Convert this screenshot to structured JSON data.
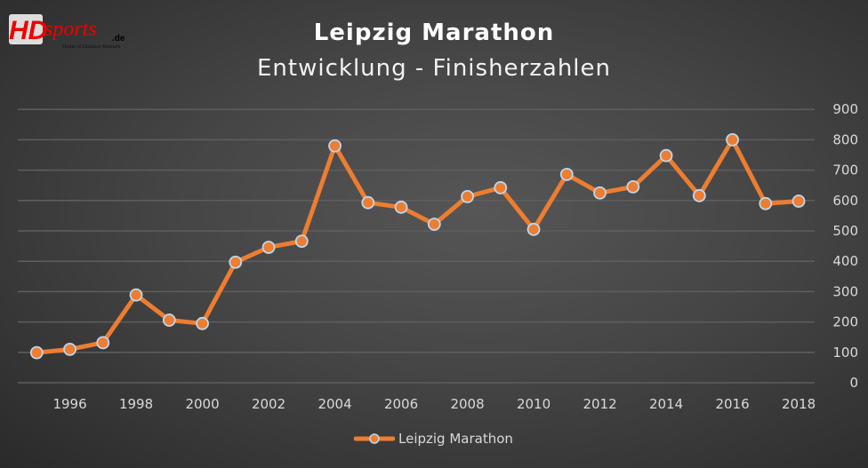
{
  "logo": {
    "text": "HDsports.de",
    "tagline": "Home of Distance Runners"
  },
  "chart_data": {
    "type": "line",
    "title": "Leipzig Marathon",
    "subtitle": "Entwicklung - Finisherzahlen",
    "x": [
      1995,
      1996,
      1997,
      1998,
      1999,
      2000,
      2001,
      2002,
      2003,
      2004,
      2005,
      2006,
      2007,
      2008,
      2009,
      2010,
      2011,
      2012,
      2013,
      2014,
      2015,
      2016,
      2017,
      2018
    ],
    "series": [
      {
        "name": "Leipzig Marathon",
        "color": "#ed7d31",
        "values": [
          99,
          110,
          132,
          289,
          206,
          195,
          397,
          446,
          466,
          780,
          593,
          578,
          522,
          613,
          642,
          505,
          686,
          625,
          645,
          748,
          616,
          800,
          590,
          598
        ]
      }
    ],
    "x_tick_labels": [
      "1996",
      "1998",
      "2000",
      "2002",
      "2004",
      "2006",
      "2008",
      "2010",
      "2012",
      "2014",
      "2016",
      "2018"
    ],
    "y_tick_labels": [
      "0",
      "100",
      "200",
      "300",
      "400",
      "500",
      "600",
      "700",
      "800",
      "900"
    ],
    "ylim": [
      0,
      900
    ],
    "y_axis_position": "right",
    "grid": true,
    "legend": "bottom",
    "background": "#404040"
  }
}
